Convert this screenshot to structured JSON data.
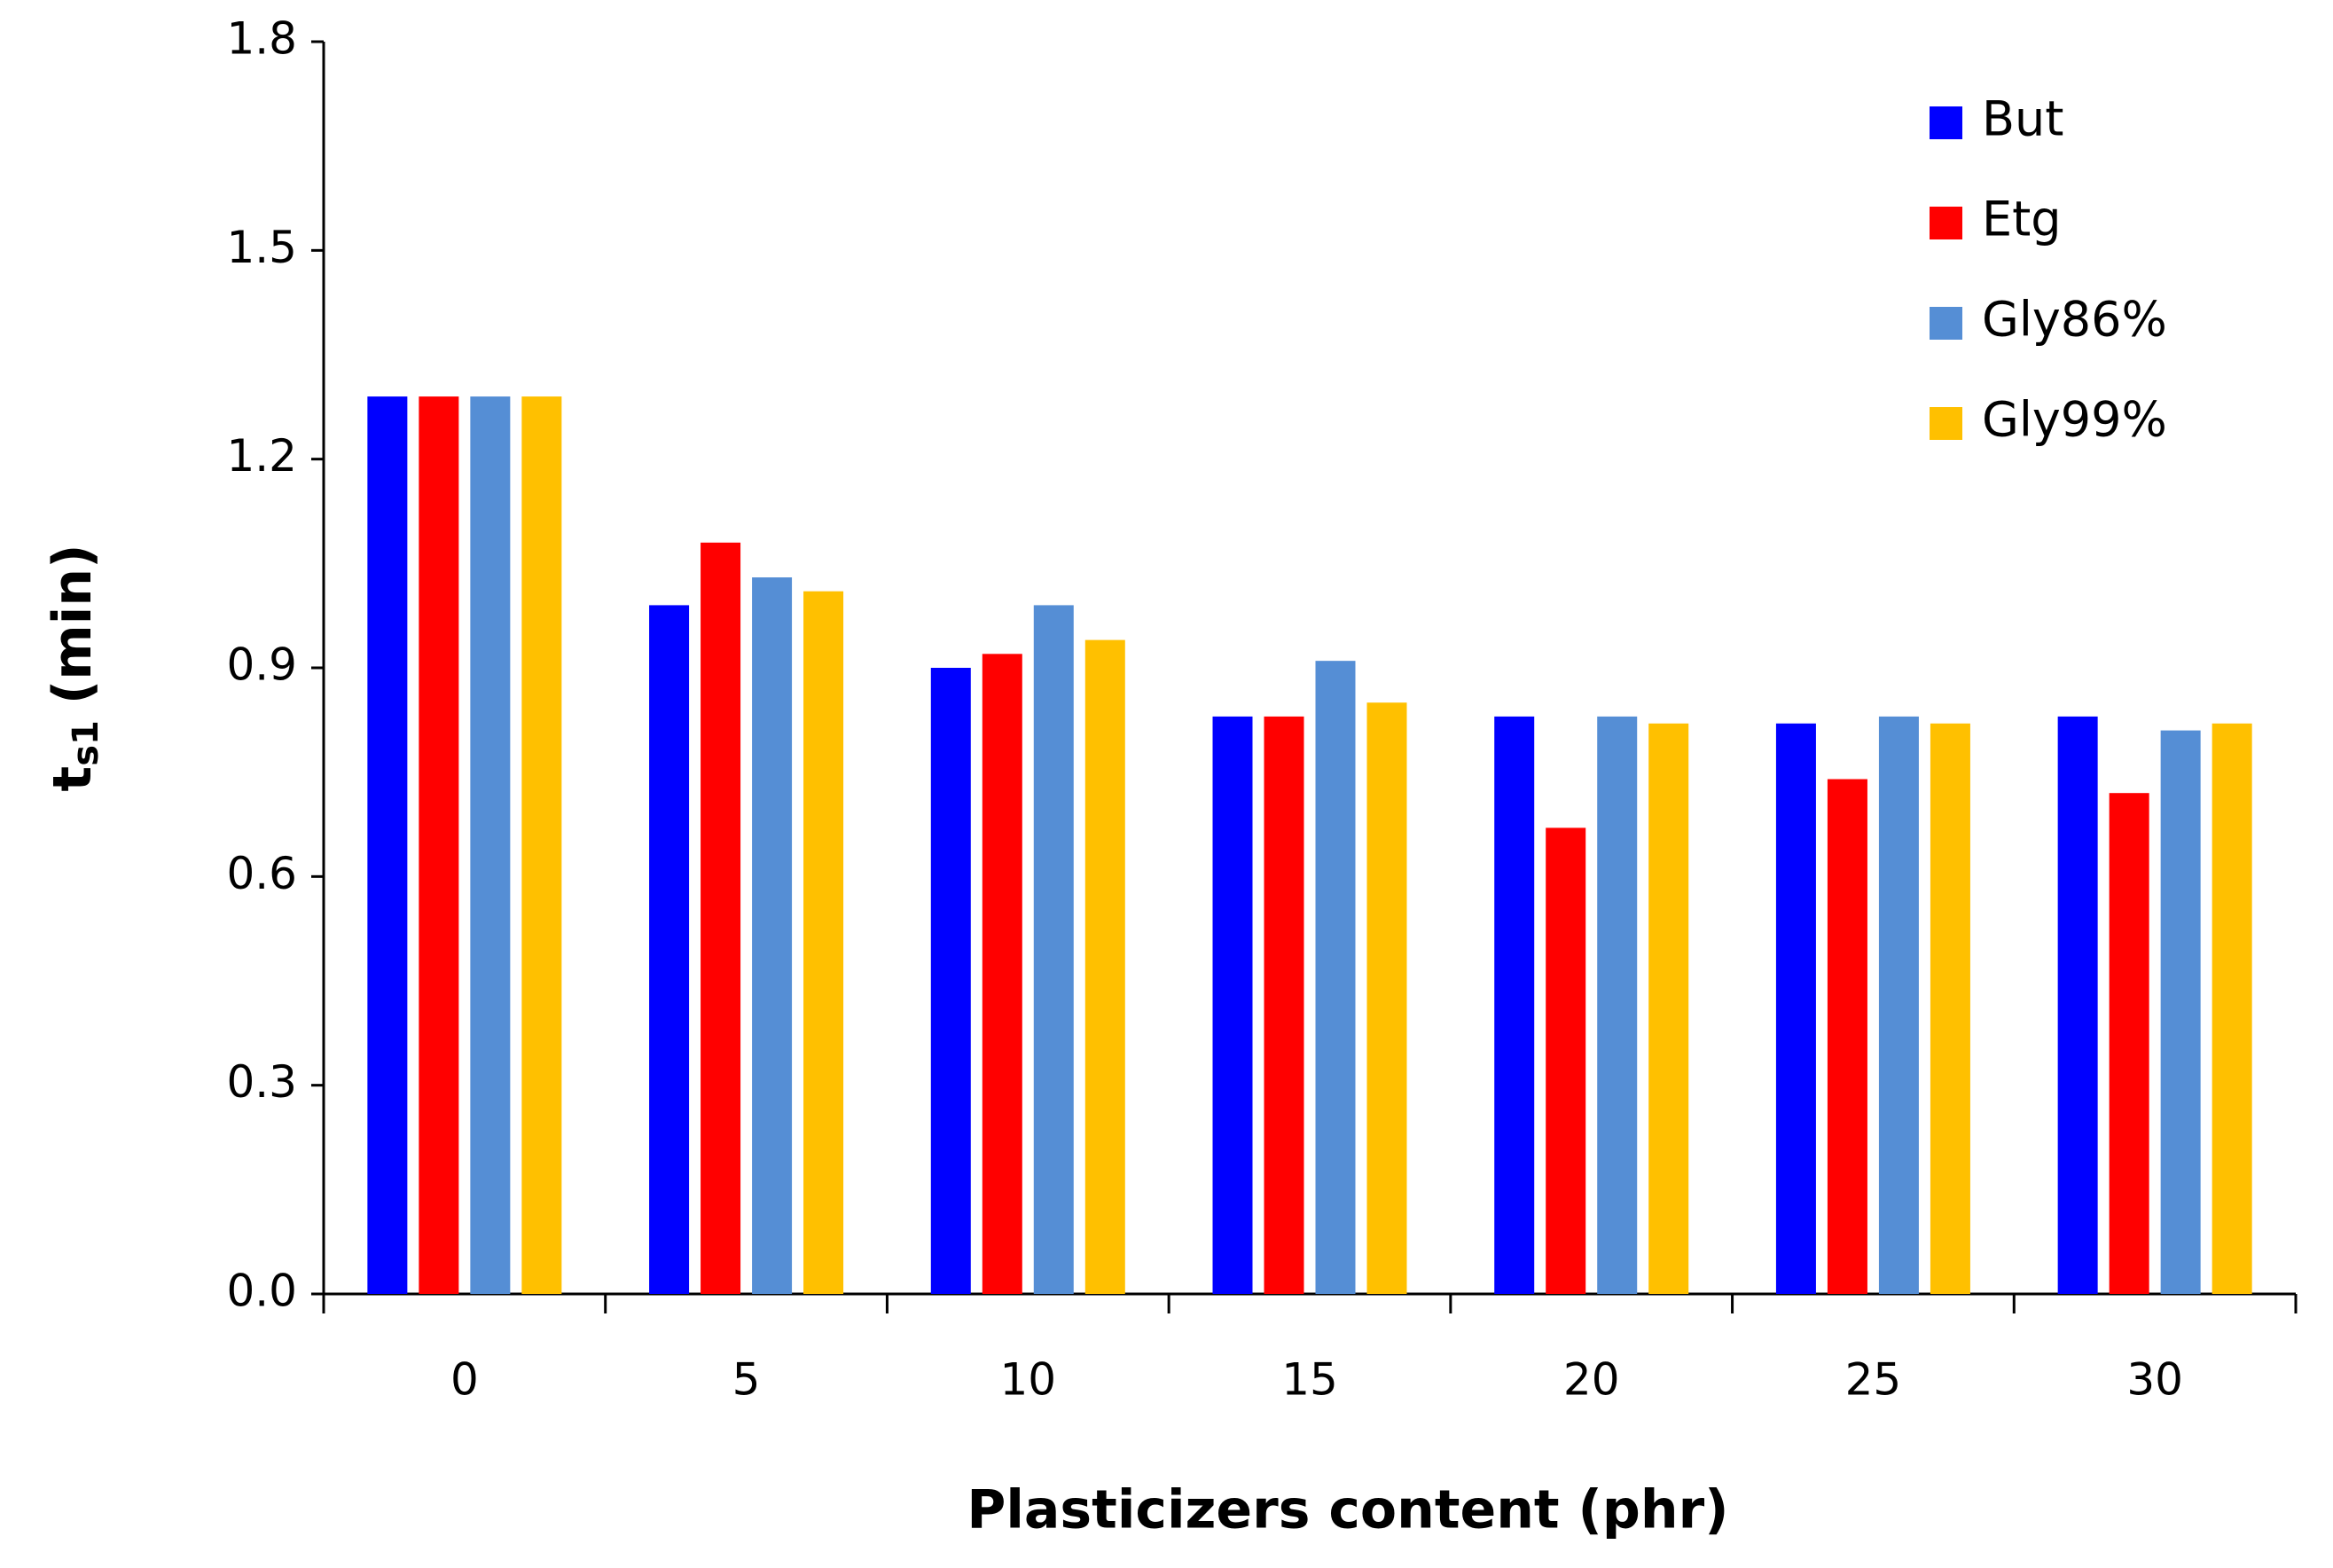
{
  "chart_data": {
    "type": "bar",
    "x_label": "Plasticizers content (phr)",
    "y_label": [
      "t",
      "s1",
      "(min)"
    ],
    "categories": [
      "0",
      "5",
      "10",
      "15",
      "20",
      "25",
      "30"
    ],
    "series": [
      {
        "name": "But",
        "color": "#0000ff",
        "values": [
          1.29,
          0.99,
          0.9,
          0.83,
          0.83,
          0.82,
          0.83
        ]
      },
      {
        "name": "Etg",
        "color": "#ff0000",
        "values": [
          1.29,
          1.08,
          0.92,
          0.83,
          0.67,
          0.74,
          0.72
        ]
      },
      {
        "name": "Gly86%",
        "color": "#558ed5",
        "values": [
          1.29,
          1.03,
          0.99,
          0.91,
          0.83,
          0.83,
          0.81
        ]
      },
      {
        "name": "Gly99%",
        "color": "#ffc000",
        "values": [
          1.29,
          1.01,
          0.94,
          0.85,
          0.82,
          0.82,
          0.82
        ]
      }
    ],
    "ylim": [
      0,
      1.8
    ],
    "yticks": [
      {
        "value": 0,
        "label": "0.0"
      },
      0.3,
      0.6,
      0.9,
      1.2,
      1.5,
      1.8
    ],
    "legend": "top-right"
  }
}
